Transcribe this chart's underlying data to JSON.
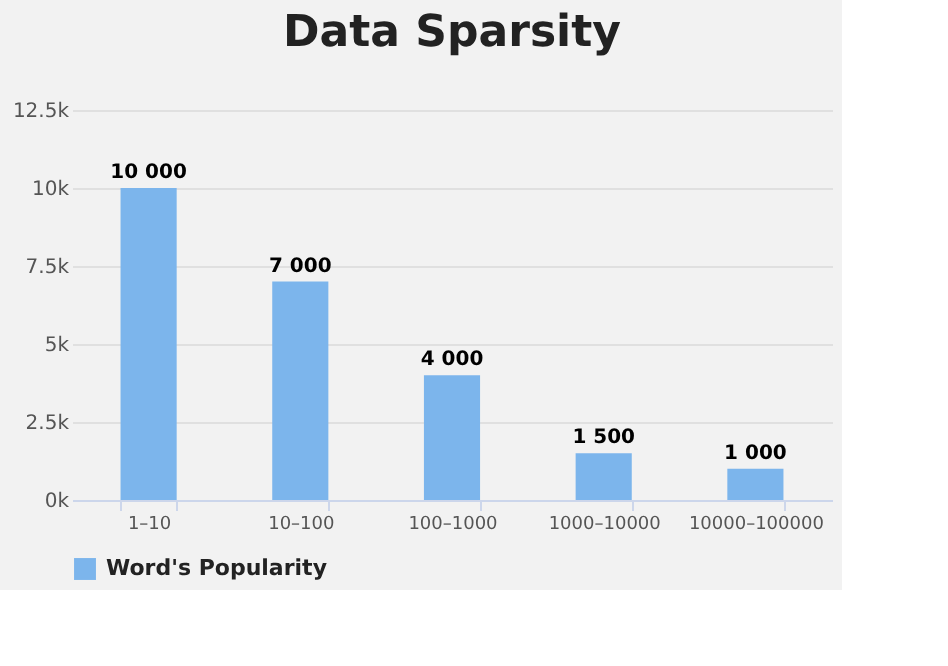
{
  "chart_data": {
    "type": "bar",
    "title": "Data Sparsity",
    "categories": [
      "1–10",
      "10–100",
      "100–1000",
      "1000–10000",
      "10000–100000"
    ],
    "series": [
      {
        "name": "Word's Popularity",
        "color": "#7cb5ec",
        "values": [
          10000,
          7000,
          4000,
          1500,
          1000
        ],
        "value_labels": [
          "10 000",
          "7 000",
          "4 000",
          "1 500",
          "1 000"
        ]
      }
    ],
    "ylim": [
      0,
      12500
    ],
    "yticks": [
      {
        "value": 0,
        "label": "0k"
      },
      {
        "value": 2500,
        "label": "2.5k"
      },
      {
        "value": 5000,
        "label": "5k"
      },
      {
        "value": 7500,
        "label": "7.5k"
      },
      {
        "value": 10000,
        "label": "10k"
      },
      {
        "value": 12500,
        "label": "12.5k"
      }
    ],
    "grid": "y",
    "legend": "bottom"
  }
}
